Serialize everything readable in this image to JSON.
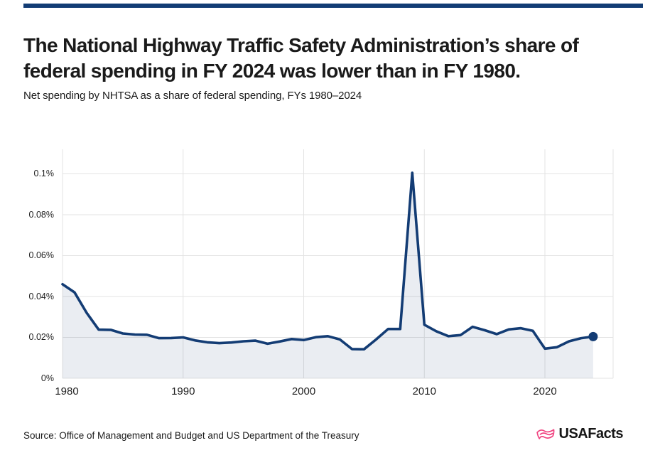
{
  "header": {
    "title_line1": "The National Highway Traffic Safety Administration’s share of",
    "title_line2": "federal spending in FY 2024 was lower than in FY 1980.",
    "subtitle": "Net spending by NHTSA as a share of federal spending, FYs 1980–2024"
  },
  "chart_data": {
    "type": "area",
    "title": "Net spending by NHTSA as a share of federal spending, FYs 1980–2024",
    "xlabel": "",
    "ylabel": "",
    "unit": "% of federal spending",
    "grid": true,
    "legend": "none",
    "x": [
      1980,
      1981,
      1982,
      1983,
      1984,
      1985,
      1986,
      1987,
      1988,
      1989,
      1990,
      1991,
      1992,
      1993,
      1994,
      1995,
      1996,
      1997,
      1998,
      1999,
      2000,
      2001,
      2002,
      2003,
      2004,
      2005,
      2006,
      2007,
      2008,
      2009,
      2010,
      2011,
      2012,
      2013,
      2014,
      2015,
      2016,
      2017,
      2018,
      2019,
      2020,
      2021,
      2022,
      2023,
      2024
    ],
    "values": [
      0.046,
      0.042,
      0.032,
      0.0238,
      0.0237,
      0.0219,
      0.0214,
      0.0213,
      0.0196,
      0.0197,
      0.02,
      0.0185,
      0.0176,
      0.0172,
      0.0175,
      0.0181,
      0.0184,
      0.0169,
      0.018,
      0.0192,
      0.0187,
      0.0201,
      0.0206,
      0.019,
      0.0143,
      0.0142,
      0.019,
      0.0241,
      0.0241,
      0.1005,
      0.0262,
      0.023,
      0.0206,
      0.0211,
      0.0252,
      0.0235,
      0.0216,
      0.0239,
      0.0245,
      0.0232,
      0.0145,
      0.0152,
      0.0181,
      0.0196,
      0.0204
    ],
    "x_ticks": {
      "values": [
        1980,
        1990,
        2000,
        2010,
        2020
      ],
      "labels": [
        "1980",
        "1990",
        "2000",
        "2010",
        "2020"
      ]
    },
    "y_ticks": {
      "values": [
        0,
        0.02,
        0.04,
        0.06,
        0.08,
        0.1
      ],
      "labels": [
        "0%",
        "0.02%",
        "0.04%",
        "0.06%",
        "0.08%",
        "0.1%"
      ]
    },
    "xlim": [
      1980,
      2025.6
    ],
    "ylim": [
      0,
      0.112
    ],
    "line_color": "#133c74",
    "fill_color": "rgba(19,60,116,0.09)",
    "gridline_color": "#e3e3e3",
    "end_dot": true
  },
  "footer": {
    "source": "Source: Office of Management and Budget and US Department of the Treasury",
    "logo_text": "USAFacts",
    "logo_color": "#f0417f"
  }
}
